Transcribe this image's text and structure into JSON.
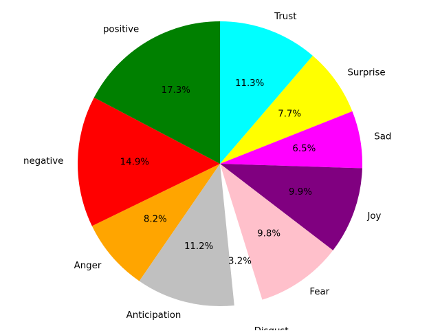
{
  "chart_data": {
    "type": "pie",
    "start_angle_deg": 90,
    "direction": "clockwise",
    "slices": [
      {
        "label": "Trust",
        "percent_label": "11.3%",
        "value": 11.3,
        "color": "#00ffff",
        "explode": false
      },
      {
        "label": "Surprise",
        "percent_label": "7.7%",
        "value": 7.7,
        "color": "#ffff00",
        "explode": false
      },
      {
        "label": "Sad",
        "percent_label": "6.5%",
        "value": 6.5,
        "color": "#ff00ff",
        "explode": false
      },
      {
        "label": "Joy",
        "percent_label": "9.9%",
        "value": 9.9,
        "color": "#800080",
        "explode": false
      },
      {
        "label": "Fear",
        "percent_label": "9.8%",
        "value": 9.8,
        "color": "#ffc0cb",
        "explode": false
      },
      {
        "label": "Disgust",
        "percent_label": "3.2%",
        "value": 3.2,
        "color": "#ffffff",
        "explode": true
      },
      {
        "label": "Anticipation",
        "percent_label": "11.2%",
        "value": 11.2,
        "color": "#c0c0c0",
        "explode": false
      },
      {
        "label": "Anger",
        "percent_label": "8.2%",
        "value": 8.2,
        "color": "#ffa500",
        "explode": false
      },
      {
        "label": "negative",
        "percent_label": "14.9%",
        "value": 14.9,
        "color": "#ff0000",
        "explode": false
      },
      {
        "label": "positive",
        "percent_label": "17.3%",
        "value": 17.3,
        "color": "#008000",
        "explode": false
      }
    ]
  }
}
